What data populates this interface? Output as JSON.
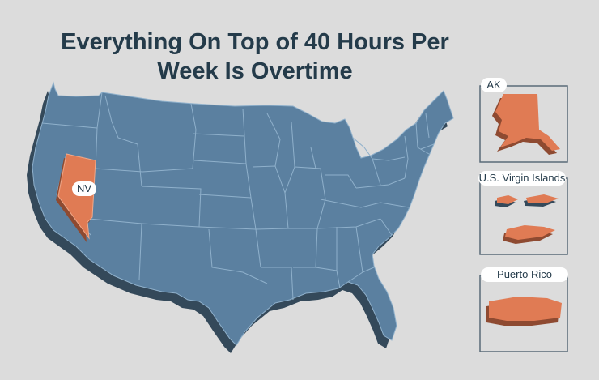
{
  "title": {
    "line1": "Everything On Top of 40 Hours Per",
    "line2": "Week Is Overtime"
  },
  "highlighted_state": {
    "label": "NV"
  },
  "insets": {
    "alaska": {
      "label": "AK"
    },
    "virgin_islands": {
      "label": "U.S. Virgin Islands"
    },
    "puerto_rico": {
      "label": "Puerto Rico"
    }
  },
  "colors": {
    "background": "#dcdcdc",
    "state_fill": "#5b80a0",
    "state_border": "#8fb0cb",
    "state_shadow": "#34495a",
    "highlight_fill": "#e07b54",
    "highlight_shadow": "#8e4a31",
    "title": "#243b4a",
    "inset_border": "#5a6b78",
    "pill_bg": "#ffffff"
  }
}
